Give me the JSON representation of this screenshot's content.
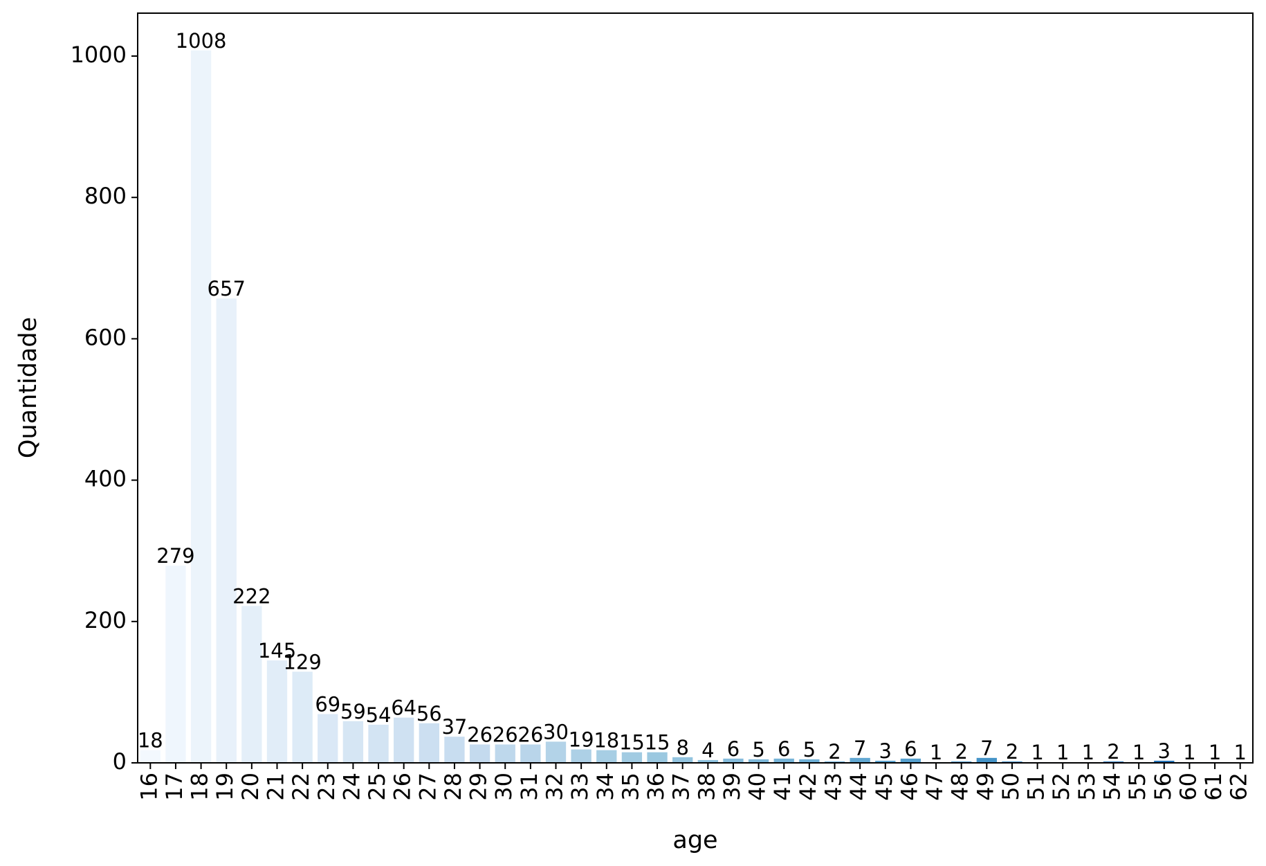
{
  "chart_data": {
    "type": "bar",
    "title": "",
    "xlabel": "age",
    "ylabel": "Quantidade",
    "ylim": [
      0,
      1060
    ],
    "yticks": [
      "0",
      "200",
      "400",
      "600",
      "800",
      "1000"
    ],
    "grid": false,
    "legend": "none",
    "color_scale": "Blues (light to dark, left to right)",
    "categories": [
      "16",
      "17",
      "18",
      "19",
      "20",
      "21",
      "22",
      "23",
      "24",
      "25",
      "26",
      "27",
      "28",
      "29",
      "30",
      "31",
      "32",
      "33",
      "34",
      "35",
      "36",
      "37",
      "38",
      "39",
      "40",
      "41",
      "42",
      "43",
      "44",
      "45",
      "46",
      "47",
      "48",
      "49",
      "50",
      "51",
      "52",
      "53",
      "54",
      "55",
      "56",
      "60",
      "61",
      "62"
    ],
    "values": [
      18,
      279,
      1008,
      657,
      222,
      145,
      129,
      69,
      59,
      54,
      64,
      56,
      37,
      26,
      26,
      26,
      30,
      19,
      18,
      15,
      15,
      8,
      4,
      6,
      5,
      6,
      5,
      2,
      7,
      3,
      6,
      1,
      2,
      7,
      2,
      1,
      1,
      1,
      2,
      1,
      3,
      1,
      1,
      1
    ]
  }
}
